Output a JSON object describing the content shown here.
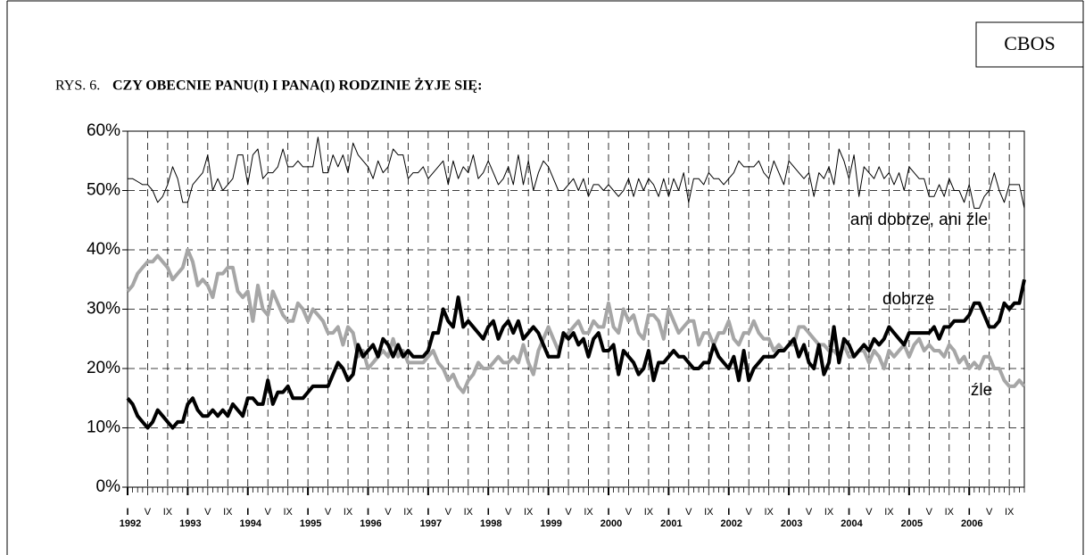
{
  "brand": "CBOS",
  "chart_data": {
    "type": "line",
    "figure_label": "RYS. 6.",
    "title": "CZY OBECNIE PANU(I) I PANA(I) RODZINIE ŻYJE SIĘ:",
    "categories": [
      "I",
      null,
      null,
      null,
      "V",
      null,
      null,
      null,
      "IX",
      null,
      null,
      null,
      "I",
      null,
      null,
      null,
      "V",
      null,
      null,
      null,
      "IX",
      null,
      null,
      null,
      "I",
      null,
      null,
      null,
      "V",
      null,
      null,
      null,
      "IX",
      null,
      null,
      null,
      "I",
      null,
      null,
      null,
      "V",
      null,
      null,
      null,
      "IX",
      null,
      null,
      null,
      "I",
      null,
      null,
      null,
      "V",
      null,
      null,
      null,
      "IX",
      null,
      null,
      null,
      "I",
      null,
      null,
      null,
      "V",
      null,
      null,
      null,
      "IX",
      null,
      null,
      null,
      "I",
      null,
      null,
      null,
      "V",
      null,
      null,
      null,
      "IX",
      null,
      null,
      null,
      "I",
      null,
      null,
      null,
      "V",
      null,
      null,
      null,
      "IX",
      null,
      null,
      null,
      "I",
      null,
      null,
      null,
      "V",
      null,
      null,
      null,
      "IX",
      null,
      null,
      null,
      "I",
      null,
      null,
      null,
      "V",
      null,
      null,
      null,
      "IX",
      null,
      null,
      null,
      "I",
      null,
      null,
      null,
      "V",
      null,
      null,
      null,
      "IX",
      null,
      null,
      null,
      "I",
      null,
      null,
      null,
      "V",
      null,
      null,
      null,
      "IX",
      null,
      null,
      null,
      "I",
      null,
      null,
      null,
      "V",
      null,
      null,
      null,
      "IX",
      null,
      null,
      null,
      "I",
      null,
      null,
      null,
      "V",
      null,
      null,
      null,
      "IX",
      null,
      null,
      null,
      "I",
      null,
      null,
      null,
      "V",
      null,
      null,
      null,
      "IX",
      null,
      null,
      null
    ],
    "year_labels": [
      "1992",
      "1993",
      "1994",
      "1995",
      "1996",
      "1997",
      "1998",
      "1999",
      "2000",
      "2001",
      "2002",
      "2003",
      "2004",
      "2005",
      "2006"
    ],
    "ylim": [
      0,
      60
    ],
    "yticks": [
      {
        "value": 0,
        "label": "0%"
      },
      {
        "value": 10,
        "label": "10%"
      },
      {
        "value": 20,
        "label": "20%"
      },
      {
        "value": 30,
        "label": "30%"
      },
      {
        "value": 40,
        "label": "40%"
      },
      {
        "value": 50,
        "label": "50%"
      },
      {
        "value": 60,
        "label": "60%"
      }
    ],
    "grid": true,
    "series": [
      {
        "name": "ani dobrze, ani źle",
        "color": "#000000",
        "width": 1,
        "values": [
          52,
          52,
          51.5,
          51,
          51,
          50,
          48,
          49,
          51,
          54,
          52,
          48,
          48,
          51,
          52,
          53,
          56,
          50,
          52,
          50,
          51,
          52,
          56,
          56,
          51,
          56,
          57,
          52,
          53,
          53,
          54,
          57,
          54,
          54,
          55,
          54,
          54,
          54,
          59,
          53,
          53,
          56,
          54,
          56,
          53,
          58,
          56,
          55,
          54,
          52,
          55,
          53,
          54,
          57,
          56,
          56,
          52,
          53,
          53,
          54,
          52,
          53,
          54,
          55,
          51,
          55,
          52,
          54,
          53,
          56,
          52,
          53,
          55,
          53,
          51,
          52,
          54,
          51,
          56,
          51,
          55,
          50,
          53,
          55,
          54,
          52,
          50,
          50,
          51,
          52,
          50,
          52,
          49,
          51,
          51,
          50,
          51,
          50,
          49,
          50,
          52,
          49,
          52,
          50,
          52,
          51,
          49,
          52,
          49,
          52,
          50,
          53,
          48,
          52,
          52,
          51,
          53,
          52,
          52,
          51,
          52,
          53,
          55,
          54,
          54,
          54,
          55,
          53,
          52,
          55,
          53,
          51,
          55,
          54,
          53,
          52,
          53,
          49,
          53,
          52,
          54,
          51,
          57,
          55,
          52,
          56,
          49,
          54,
          53,
          52,
          54,
          52,
          53,
          51,
          53,
          50,
          54,
          53,
          52,
          52,
          49,
          49,
          51,
          49,
          52,
          50,
          50,
          48,
          51,
          47,
          47,
          49,
          50,
          53,
          50,
          48,
          51,
          51,
          51,
          47
        ]
      },
      {
        "name": "dobrze",
        "color": "#000000",
        "width": 4,
        "values": [
          15,
          14,
          12,
          11,
          10,
          11,
          13,
          12,
          11,
          10,
          11,
          11,
          14,
          15,
          13,
          12,
          12,
          13,
          12,
          13,
          12,
          14,
          13,
          12,
          15,
          15,
          14,
          14,
          18,
          14,
          16,
          16,
          17,
          15,
          15,
          15,
          16,
          17,
          17,
          17,
          17,
          19,
          21,
          20,
          18,
          19,
          24,
          22,
          23,
          24,
          22,
          25,
          24,
          22,
          24,
          22,
          23,
          22,
          22,
          22,
          23,
          26,
          26,
          30,
          28,
          27,
          32,
          27,
          28,
          27,
          26,
          25,
          27,
          28,
          25,
          27,
          28,
          26,
          28,
          25,
          26,
          27,
          26,
          24,
          22,
          22,
          22,
          26,
          25,
          26,
          24,
          25,
          22,
          25,
          26,
          23,
          23,
          24,
          19,
          23,
          22,
          21,
          19,
          20,
          23,
          18,
          21,
          21,
          22,
          23,
          22,
          22,
          21,
          20,
          20,
          21,
          21,
          24,
          22,
          21,
          20,
          22,
          18,
          23,
          18,
          20,
          21,
          22,
          22,
          22,
          23,
          23,
          24,
          25,
          22,
          24,
          21,
          20,
          24,
          19,
          21,
          27,
          21,
          25,
          24,
          22,
          23,
          24,
          23,
          25,
          24,
          25,
          27,
          26,
          25,
          24,
          26,
          26,
          26,
          26,
          26,
          27,
          25,
          27,
          27,
          28,
          28,
          28,
          29,
          31,
          31,
          29,
          27,
          27,
          28,
          31,
          30,
          31,
          31,
          35
        ]
      },
      {
        "name": "źle",
        "color": "#a6a6a6",
        "width": 4,
        "values": [
          33,
          34,
          36,
          37,
          38,
          38,
          39,
          38,
          37,
          35,
          36,
          37,
          40,
          38,
          34,
          35,
          34,
          32,
          36,
          36,
          37,
          37,
          33,
          32,
          33,
          28,
          34,
          30,
          29,
          33,
          31,
          29,
          28,
          28,
          31,
          30,
          28,
          30,
          29,
          28,
          26,
          26,
          27,
          24,
          27,
          26,
          22,
          23,
          20,
          21,
          22,
          23,
          22,
          25,
          22,
          23,
          21,
          21,
          21,
          21,
          22,
          23,
          21,
          20,
          18,
          19,
          17,
          16,
          18,
          19,
          21,
          20,
          20,
          21,
          22,
          21,
          21,
          22,
          21,
          24,
          21,
          19,
          23,
          25,
          27,
          25,
          23,
          25,
          26,
          27,
          28,
          26,
          26,
          28,
          27,
          27,
          31,
          27,
          26,
          30,
          28,
          29,
          26,
          25,
          29,
          29,
          28,
          25,
          30,
          28,
          26,
          27,
          28,
          28,
          24,
          26,
          26,
          24,
          26,
          26,
          28,
          25,
          24,
          26,
          26,
          28,
          26,
          25,
          25,
          23,
          24,
          23,
          24,
          24,
          27,
          27,
          26,
          25,
          24,
          24,
          23,
          23,
          22,
          24,
          22,
          22,
          23,
          23,
          21,
          23,
          22,
          20,
          23,
          22,
          23,
          24,
          22,
          24,
          25,
          23,
          24,
          23,
          23,
          22,
          24,
          23,
          21,
          22,
          20,
          21,
          20,
          22,
          22,
          20,
          20,
          18,
          17,
          17,
          18,
          17
        ]
      }
    ]
  }
}
